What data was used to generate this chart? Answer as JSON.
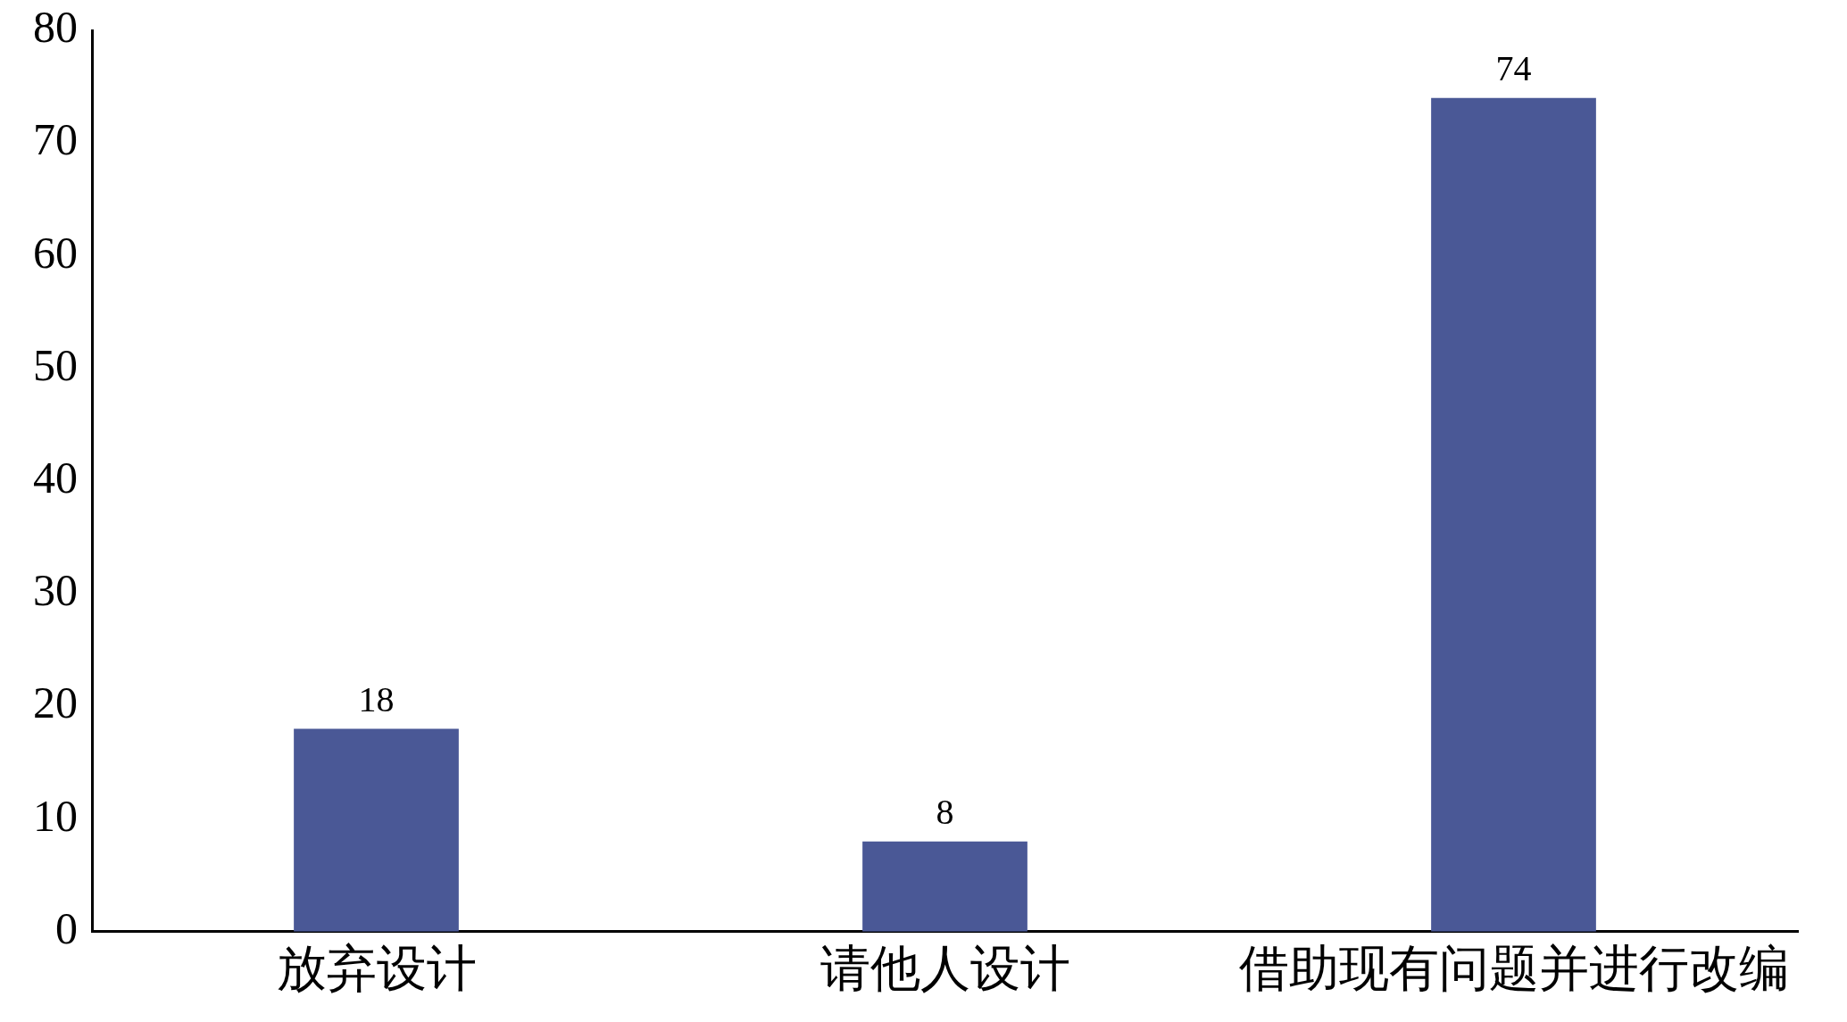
{
  "chart_data": {
    "type": "bar",
    "categories": [
      "放弃设计",
      "请他人设计",
      "借助现有问题并进行改编"
    ],
    "values": [
      18,
      8,
      74
    ],
    "color": "#4a5896",
    "ylim": [
      0,
      80
    ],
    "yticks": [
      0,
      10,
      20,
      30,
      40,
      50,
      60,
      70,
      80
    ],
    "grid": false,
    "legend": false,
    "data_labels": true
  }
}
